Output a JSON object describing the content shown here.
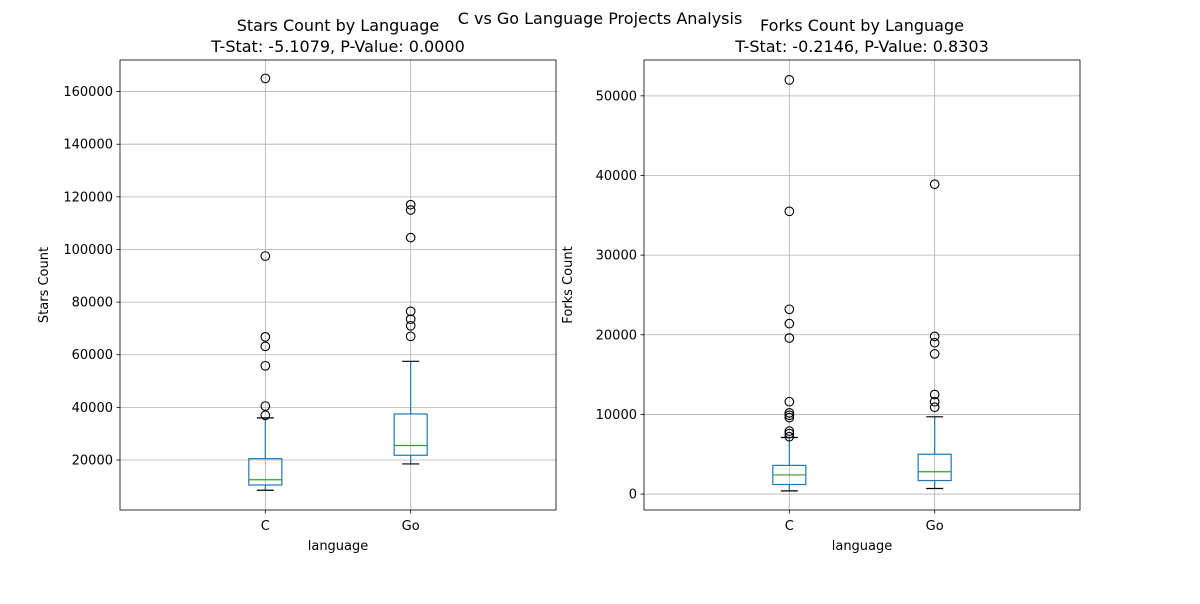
{
  "figure": {
    "suptitle": "C vs Go Language Projects Analysis"
  },
  "chart_data": [
    {
      "type": "box",
      "title_line1": "Stars Count by Language",
      "title_line2": "T-Stat: -5.1079, P-Value: 0.0000",
      "xlabel": "language",
      "ylabel": "Stars Count",
      "categories": [
        "C",
        "Go"
      ],
      "ylim": [
        1000,
        172000
      ],
      "yticks": [
        20000,
        40000,
        60000,
        80000,
        100000,
        120000,
        140000,
        160000
      ],
      "grid": true,
      "boxes": [
        {
          "category": "C",
          "whisker_low": 8500,
          "q1": 10500,
          "median": 12500,
          "q3": 20500,
          "whisker_high": 36000,
          "outliers": [
            37000,
            40500,
            55800,
            63200,
            66800,
            97500,
            165000
          ]
        },
        {
          "category": "Go",
          "whisker_low": 18500,
          "q1": 21800,
          "median": 25500,
          "q3": 37500,
          "whisker_high": 57500,
          "outliers": [
            67000,
            71000,
            73500,
            76500,
            104500,
            115000,
            117000
          ]
        }
      ]
    },
    {
      "type": "box",
      "title_line1": "Forks Count by Language",
      "title_line2": "T-Stat: -0.2146, P-Value: 0.8303",
      "xlabel": "language",
      "ylabel": "Forks Count",
      "categories": [
        "C",
        "Go"
      ],
      "ylim": [
        -2000,
        54500
      ],
      "yticks": [
        0,
        10000,
        20000,
        30000,
        40000,
        50000
      ],
      "grid": true,
      "boxes": [
        {
          "category": "C",
          "whisker_low": 400,
          "q1": 1200,
          "median": 2400,
          "q3": 3600,
          "whisker_high": 7100,
          "outliers": [
            7200,
            7600,
            7900,
            9600,
            9900,
            10200,
            11600,
            19600,
            21400,
            23200,
            35500,
            52000
          ]
        },
        {
          "category": "Go",
          "whisker_low": 700,
          "q1": 1700,
          "median": 2800,
          "q3": 5000,
          "whisker_high": 9700,
          "outliers": [
            10900,
            11600,
            12500,
            17600,
            19000,
            19800,
            38900
          ]
        }
      ]
    }
  ],
  "colors": {
    "box": "#1f77b4",
    "median": "#2ca02c",
    "whisker_cap": "#000000",
    "outlier": "#000000",
    "grid": "#b0b0b0",
    "axes": "#000000"
  }
}
